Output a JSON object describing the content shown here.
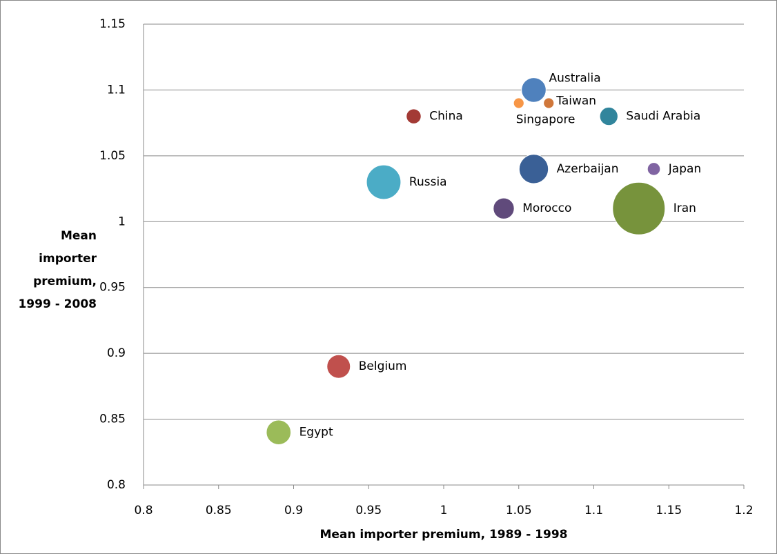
{
  "chart_data": {
    "type": "bubble",
    "x_label": "Mean importer premium, 1989 - 1998",
    "y_label": "Mean importer premium, 1999 - 2008",
    "xlim": [
      0.8,
      1.2
    ],
    "xticks": [
      0.8,
      0.85,
      0.9,
      0.95,
      1,
      1.05,
      1.1,
      1.15,
      1.2
    ],
    "ylim": [
      0.8,
      1.15
    ],
    "yticks": [
      0.8,
      0.85,
      0.9,
      0.95,
      1,
      1.05,
      1.1,
      1.15
    ],
    "grid": true,
    "series": [
      {
        "name": "Australia",
        "color": "#4f81bd",
        "x": [
          1.06
        ],
        "values": [
          1.1
        ],
        "sizes": [
          22
        ]
      },
      {
        "name": "Taiwan",
        "color": "#d0773a",
        "x": [
          1.07
        ],
        "values": [
          1.09
        ],
        "sizes": [
          4
        ]
      },
      {
        "name": "Singapore",
        "color": "#f79646",
        "x": [
          1.05
        ],
        "values": [
          1.09
        ],
        "sizes": [
          4
        ]
      },
      {
        "name": "China",
        "color": "#a33a35",
        "x": [
          0.98
        ],
        "values": [
          1.08
        ],
        "sizes": [
          8
        ]
      },
      {
        "name": "Saudi Arabia",
        "color": "#31859c",
        "x": [
          1.11
        ],
        "values": [
          1.08
        ],
        "sizes": [
          12
        ]
      },
      {
        "name": "Azerbaijan",
        "color": "#3a6096",
        "x": [
          1.06
        ],
        "values": [
          1.04
        ],
        "sizes": [
          31
        ]
      },
      {
        "name": "Japan",
        "color": "#8064a2",
        "x": [
          1.14
        ],
        "values": [
          1.04
        ],
        "sizes": [
          6
        ]
      },
      {
        "name": "Russia",
        "color": "#4bacc6",
        "x": [
          0.96
        ],
        "values": [
          1.03
        ],
        "sizes": [
          43
        ]
      },
      {
        "name": "Morocco",
        "color": "#604a7b",
        "x": [
          1.04
        ],
        "values": [
          1.01
        ],
        "sizes": [
          16
        ]
      },
      {
        "name": "Iran",
        "color": "#77933c",
        "x": [
          1.13
        ],
        "values": [
          1.01
        ],
        "sizes": [
          100
        ]
      },
      {
        "name": "Belgium",
        "color": "#c0504d",
        "x": [
          0.93
        ],
        "values": [
          0.89
        ],
        "sizes": [
          20
        ]
      },
      {
        "name": "Egypt",
        "color": "#9bbb59",
        "x": [
          0.89
        ],
        "values": [
          0.84
        ],
        "sizes": [
          22
        ]
      }
    ]
  }
}
